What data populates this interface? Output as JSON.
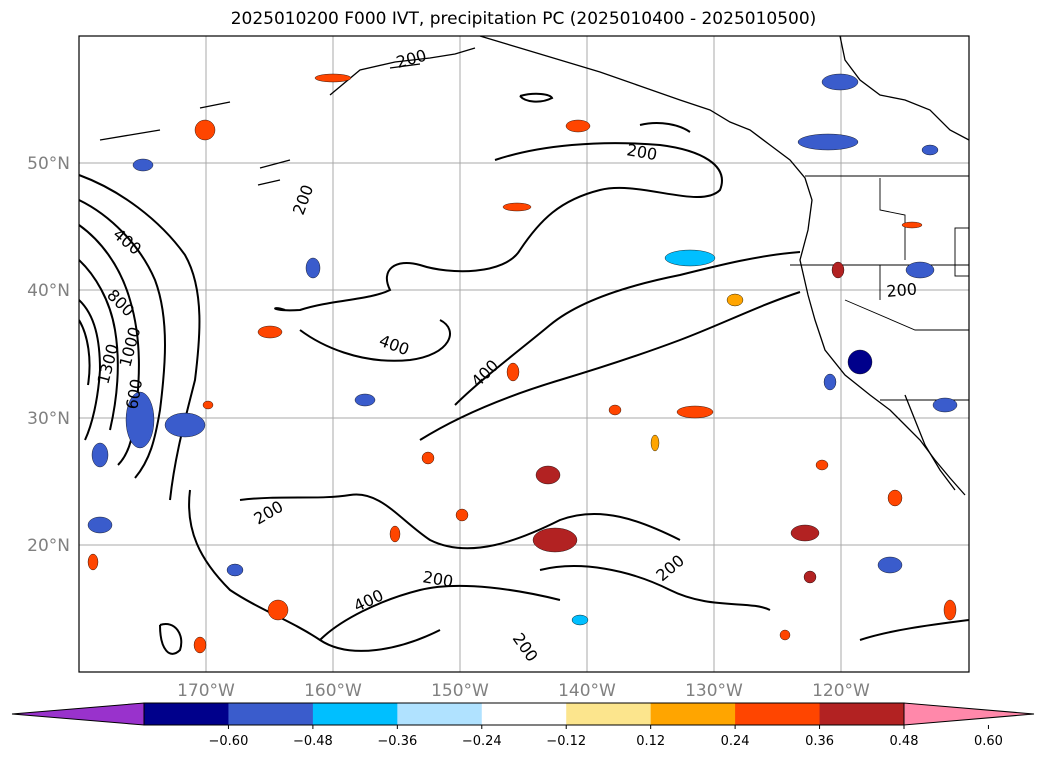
{
  "title": "2025010200 F000 IVT, precipitation PC (2025010400 - 2025010500)",
  "lat_ticks": [
    "50°N",
    "40°N",
    "30°N",
    "20°N"
  ],
  "lon_ticks": [
    "170°W",
    "160°W",
    "150°W",
    "140°W",
    "130°W",
    "120°W"
  ],
  "colorbar": {
    "colors": [
      "#9932cc",
      "#00008b",
      "#3a5ccc",
      "#00bfff",
      "#b0e2ff",
      "#ffffff",
      "#fce58d",
      "#ffa500",
      "#ff4500",
      "#b22222",
      "#ff88aa"
    ],
    "tick_labels": [
      "−0.60",
      "−0.48",
      "−0.36",
      "−0.24",
      "−0.12",
      "0.12",
      "0.24",
      "0.36",
      "0.48",
      "0.60"
    ]
  },
  "contour_labels": [
    "400",
    "800",
    "1300",
    "1000",
    "600",
    "200",
    "200",
    "200",
    "400",
    "400",
    "200",
    "400",
    "200",
    "200",
    "200",
    "200"
  ]
}
